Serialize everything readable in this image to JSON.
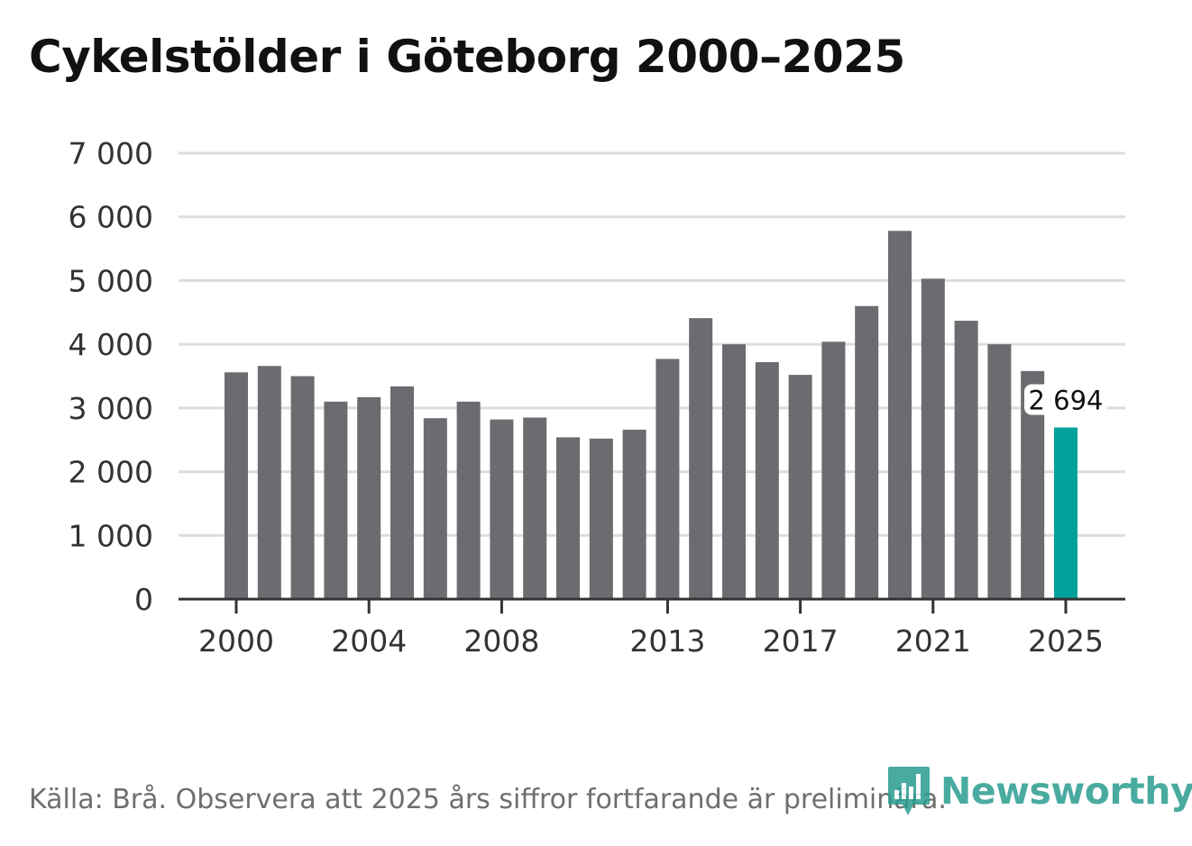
{
  "title": "Cykelstölder i Göteborg 2000–2025",
  "footer": {
    "source": "Källa: Brå. Observera att 2025 års siffror fortfarande är preliminära."
  },
  "brand": {
    "name": "Newsworthy",
    "icon": "newsworthy-logo-icon",
    "color": "#2a9d8f"
  },
  "chart_data": {
    "type": "bar",
    "title": "Cykelstölder i Göteborg 2000–2025",
    "xlabel": "",
    "ylabel": "",
    "ylim": [
      0,
      7000
    ],
    "yticks": [
      0,
      1000,
      2000,
      3000,
      4000,
      5000,
      6000,
      7000
    ],
    "ytick_labels": [
      "0",
      "1 000",
      "2 000",
      "3 000",
      "4 000",
      "5 000",
      "6 000",
      "7 000"
    ],
    "grid": true,
    "categories": [
      "2000",
      "2001",
      "2002",
      "2003",
      "2004",
      "2005",
      "2006",
      "2007",
      "2008",
      "2009",
      "2010",
      "2011",
      "2012",
      "2013",
      "2014",
      "2015",
      "2016",
      "2017",
      "2018",
      "2019",
      "2020",
      "2021",
      "2022",
      "2023",
      "2024",
      "2025"
    ],
    "values": [
      3560,
      3660,
      3500,
      3100,
      3170,
      3340,
      2840,
      3100,
      2820,
      2850,
      2540,
      2520,
      2660,
      3770,
      4410,
      4000,
      3720,
      3520,
      4040,
      4600,
      5780,
      5030,
      4370,
      4000,
      3580,
      2694
    ],
    "xtick_labels": [
      "2000",
      "2004",
      "2008",
      "2013",
      "2017",
      "2021",
      "2025"
    ],
    "bar_color": "#6b6b70",
    "highlight_color": "#00a19a",
    "highlight_category": "2025",
    "highlight_label": "2 694"
  }
}
